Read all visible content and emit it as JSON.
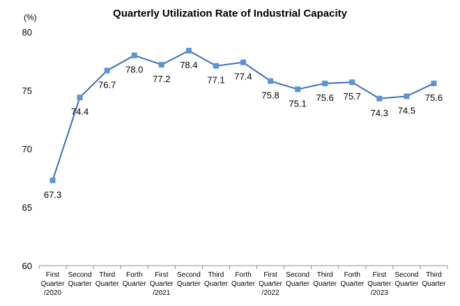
{
  "chart_data": {
    "type": "line",
    "title": "Quarterly Utilization Rate of Industrial Capacity",
    "unit_label": "(%)",
    "xlabel": "",
    "ylabel": "",
    "ylim": [
      60,
      80
    ],
    "yticks": [
      60,
      65,
      70,
      75,
      80
    ],
    "grid": false,
    "legend": "none",
    "line_color": "#3b6fb6",
    "marker_color": "#5b93d8",
    "categories": [
      [
        "First",
        "Quarter",
        "/2020"
      ],
      [
        "Second",
        "Quarter"
      ],
      [
        "Third",
        "Quarter"
      ],
      [
        "Forth",
        "Quarter"
      ],
      [
        "First",
        "Quarter",
        "/2021"
      ],
      [
        "Second",
        "Quarter"
      ],
      [
        "Third",
        "Quarter"
      ],
      [
        "Forth",
        "Quarter"
      ],
      [
        "First",
        "Quarter",
        "/2022"
      ],
      [
        "Second",
        "Quarter"
      ],
      [
        "Third",
        "Quarter"
      ],
      [
        "Forth",
        "Quarter"
      ],
      [
        "First",
        "Quarter",
        "/2023"
      ],
      [
        "Second",
        "Quarter"
      ],
      [
        "Third",
        "Quarter"
      ]
    ],
    "values": [
      67.3,
      74.4,
      76.7,
      78.0,
      77.2,
      78.4,
      77.1,
      77.4,
      75.8,
      75.1,
      75.6,
      75.7,
      74.3,
      74.5,
      75.6
    ],
    "data_labels": [
      "67.3",
      "74.4",
      "76.7",
      "78.0",
      "77.2",
      "78.4",
      "77.1",
      "77.4",
      "75.8",
      "75.1",
      "75.6",
      "75.7",
      "74.3",
      "74.5",
      "75.6"
    ]
  }
}
